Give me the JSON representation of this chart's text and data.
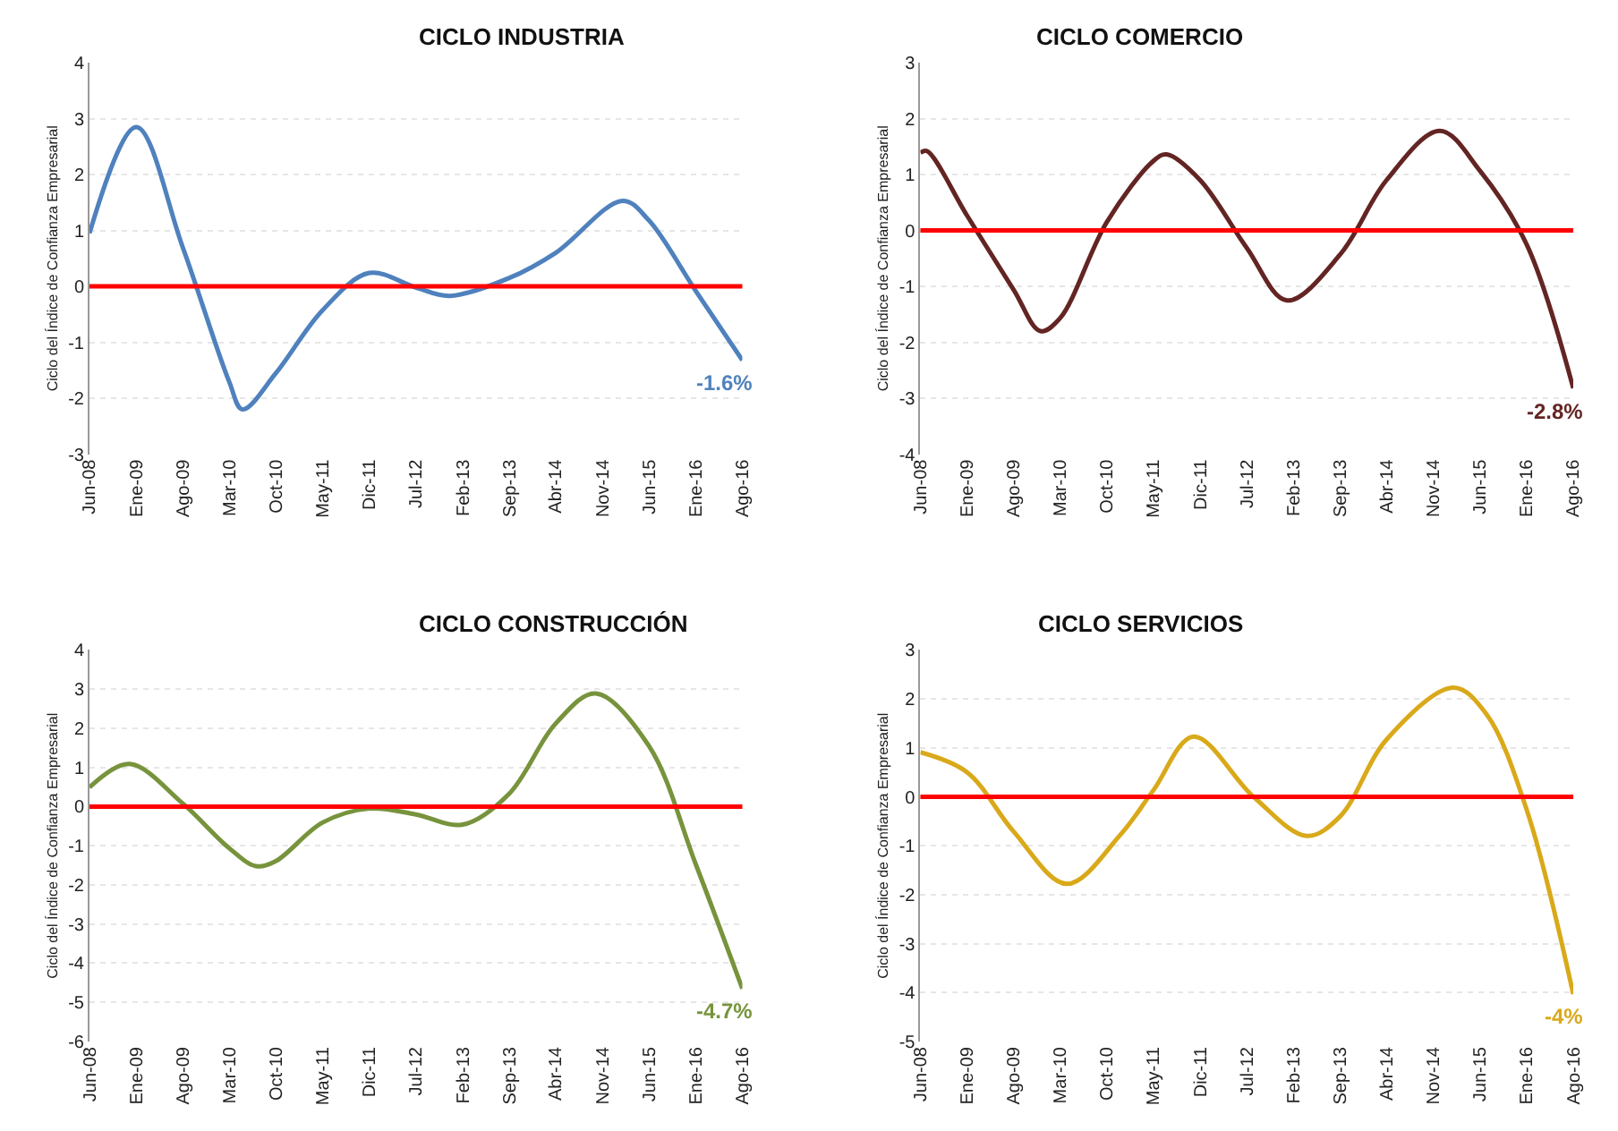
{
  "chart_data": [
    {
      "type": "line",
      "title": "CICLO INDUSTRIA",
      "ylabel": "Ciclo del Índice de Confianza Empresarial",
      "grid": "y",
      "ylim": [
        -3,
        4
      ],
      "yticks": [
        -3,
        -2,
        -1,
        0,
        1,
        2,
        3,
        4
      ],
      "xlim": [
        "2008-06",
        "2016-08"
      ],
      "xticks": [
        {
          "value": "2008-06",
          "label": "Jun-08"
        },
        {
          "value": "2009-01",
          "label": "Ene-09"
        },
        {
          "value": "2009-08",
          "label": "Ago-09"
        },
        {
          "value": "2010-03",
          "label": "Mar-10"
        },
        {
          "value": "2010-10",
          "label": "Oct-10"
        },
        {
          "value": "2011-05",
          "label": "May-11"
        },
        {
          "value": "2011-12",
          "label": "Dic-11"
        },
        {
          "value": "2012-07",
          "label": "Jul-12"
        },
        {
          "value": "2013-02",
          "label": "Feb-13"
        },
        {
          "value": "2013-09",
          "label": "Sep-13"
        },
        {
          "value": "2014-04",
          "label": "Abr-14"
        },
        {
          "value": "2014-11",
          "label": "Nov-14"
        },
        {
          "value": "2015-06",
          "label": "Jun-15"
        },
        {
          "value": "2016-01",
          "label": "Ene-16"
        },
        {
          "value": "2016-08",
          "label": "Ago-16"
        }
      ],
      "series": [
        {
          "color": "#4f81bd",
          "x": [
            "2008-06",
            "2009-01",
            "2009-08",
            "2010-03",
            "2010-05",
            "2010-10",
            "2011-05",
            "2011-12",
            "2012-07",
            "2012-12",
            "2013-09",
            "2014-04",
            "2015-02",
            "2015-06",
            "2016-01",
            "2016-08"
          ],
          "values": [
            0.95,
            2.85,
            0.7,
            -1.7,
            -2.2,
            -1.55,
            -0.43,
            0.24,
            -0.02,
            -0.17,
            0.15,
            0.6,
            1.53,
            1.18,
            -0.08,
            -1.32
          ]
        }
      ],
      "ref_lines": [
        {
          "axis": "y",
          "value": 0,
          "color": "#ff0000"
        }
      ],
      "annotations": [
        {
          "text": "-1.6%",
          "x": "2016-08",
          "y": -1.32
        }
      ]
    },
    {
      "type": "line",
      "title": "CICLO COMERCIO",
      "ylabel": "Ciclo del Índice de Confianza Empresarial",
      "grid": "y",
      "ylim": [
        -4,
        3
      ],
      "yticks": [
        -4,
        -3,
        -2,
        -1,
        0,
        1,
        2,
        3
      ],
      "xlim": [
        "2008-06",
        "2016-08"
      ],
      "xticks": [
        {
          "value": "2008-06",
          "label": "Jun-08"
        },
        {
          "value": "2009-01",
          "label": "Ene-09"
        },
        {
          "value": "2009-08",
          "label": "Ago-09"
        },
        {
          "value": "2010-03",
          "label": "Mar-10"
        },
        {
          "value": "2010-10",
          "label": "Oct-10"
        },
        {
          "value": "2011-05",
          "label": "May-11"
        },
        {
          "value": "2011-12",
          "label": "Dic-11"
        },
        {
          "value": "2012-07",
          "label": "Jul-12"
        },
        {
          "value": "2013-02",
          "label": "Feb-13"
        },
        {
          "value": "2013-09",
          "label": "Sep-13"
        },
        {
          "value": "2014-04",
          "label": "Abr-14"
        },
        {
          "value": "2014-11",
          "label": "Nov-14"
        },
        {
          "value": "2015-06",
          "label": "Jun-15"
        },
        {
          "value": "2016-01",
          "label": "Ene-16"
        },
        {
          "value": "2016-08",
          "label": "Ago-16"
        }
      ],
      "series": [
        {
          "color": "#632523",
          "x": [
            "2008-06",
            "2008-07",
            "2009-01",
            "2009-08",
            "2009-12",
            "2010-03",
            "2010-10",
            "2011-05",
            "2011-07",
            "2011-12",
            "2012-07",
            "2013-01",
            "2013-09",
            "2014-04",
            "2014-12",
            "2015-06",
            "2016-01",
            "2016-08"
          ],
          "values": [
            1.39,
            1.42,
            0.26,
            -1.06,
            -1.8,
            -1.57,
            0.15,
            1.24,
            1.36,
            0.9,
            -0.31,
            -1.25,
            -0.43,
            0.9,
            1.78,
            1.07,
            -0.25,
            -2.82
          ]
        }
      ],
      "ref_lines": [
        {
          "axis": "y",
          "value": 0,
          "color": "#ff0000"
        }
      ],
      "annotations": [
        {
          "text": "-2.8%",
          "x": "2016-08",
          "y": -2.82
        }
      ]
    },
    {
      "type": "line",
      "title": "CICLO CONSTRUCCIÓN",
      "ylabel": "Ciclo del Índice de Confianza Empresarial",
      "grid": "y",
      "ylim": [
        -6,
        4
      ],
      "yticks": [
        -6,
        -5,
        -4,
        -3,
        -2,
        -1,
        0,
        1,
        2,
        3,
        4
      ],
      "xlim": [
        "2008-06",
        "2016-08"
      ],
      "xticks": [
        {
          "value": "2008-06",
          "label": "Jun-08"
        },
        {
          "value": "2009-01",
          "label": "Ene-09"
        },
        {
          "value": "2009-08",
          "label": "Ago-09"
        },
        {
          "value": "2010-03",
          "label": "Mar-10"
        },
        {
          "value": "2010-10",
          "label": "Oct-10"
        },
        {
          "value": "2011-05",
          "label": "May-11"
        },
        {
          "value": "2011-12",
          "label": "Dic-11"
        },
        {
          "value": "2012-07",
          "label": "Jul-12"
        },
        {
          "value": "2013-02",
          "label": "Feb-13"
        },
        {
          "value": "2013-09",
          "label": "Sep-13"
        },
        {
          "value": "2014-04",
          "label": "Abr-14"
        },
        {
          "value": "2014-11",
          "label": "Nov-14"
        },
        {
          "value": "2015-06",
          "label": "Jun-15"
        },
        {
          "value": "2016-01",
          "label": "Ene-16"
        },
        {
          "value": "2016-08",
          "label": "Ago-16"
        }
      ],
      "series": [
        {
          "color": "#77933c",
          "x": [
            "2008-06",
            "2008-12",
            "2009-08",
            "2010-03",
            "2010-07",
            "2010-10",
            "2011-05",
            "2011-12",
            "2012-07",
            "2013-02",
            "2013-09",
            "2014-04",
            "2014-10",
            "2015-06",
            "2016-01",
            "2016-08"
          ],
          "values": [
            0.49,
            1.09,
            0.08,
            -1.06,
            -1.52,
            -1.39,
            -0.41,
            -0.05,
            -0.2,
            -0.46,
            0.33,
            2.12,
            2.89,
            1.55,
            -1.47,
            -4.65
          ]
        }
      ],
      "ref_lines": [
        {
          "axis": "y",
          "value": 0,
          "color": "#ff0000"
        }
      ],
      "annotations": [
        {
          "text": "-4.7%",
          "x": "2016-08",
          "y": -4.65
        }
      ]
    },
    {
      "type": "line",
      "title": "CICLO SERVICIOS",
      "ylabel": "Ciclo del Índice de Confianza Empresarial",
      "grid": "y",
      "ylim": [
        -5,
        3
      ],
      "yticks": [
        -5,
        -4,
        -3,
        -2,
        -1,
        0,
        1,
        2,
        3
      ],
      "xlim": [
        "2008-06",
        "2016-08"
      ],
      "xticks": [
        {
          "value": "2008-06",
          "label": "Jun-08"
        },
        {
          "value": "2009-01",
          "label": "Ene-09"
        },
        {
          "value": "2009-08",
          "label": "Ago-09"
        },
        {
          "value": "2010-03",
          "label": "Mar-10"
        },
        {
          "value": "2010-10",
          "label": "Oct-10"
        },
        {
          "value": "2011-05",
          "label": "May-11"
        },
        {
          "value": "2011-12",
          "label": "Dic-11"
        },
        {
          "value": "2012-07",
          "label": "Jul-12"
        },
        {
          "value": "2013-02",
          "label": "Feb-13"
        },
        {
          "value": "2013-09",
          "label": "Sep-13"
        },
        {
          "value": "2014-04",
          "label": "Abr-14"
        },
        {
          "value": "2014-11",
          "label": "Nov-14"
        },
        {
          "value": "2015-06",
          "label": "Jun-15"
        },
        {
          "value": "2016-01",
          "label": "Ene-16"
        },
        {
          "value": "2016-08",
          "label": "Ago-16"
        }
      ],
      "series": [
        {
          "color": "#d9a91a",
          "x": [
            "2008-06",
            "2009-01",
            "2009-08",
            "2010-04",
            "2010-12",
            "2011-05",
            "2011-11",
            "2012-08",
            "2013-04",
            "2013-09",
            "2014-04",
            "2015-02",
            "2015-07",
            "2016-01",
            "2016-08"
          ],
          "values": [
            0.91,
            0.5,
            -0.71,
            -1.78,
            -0.78,
            0.13,
            1.23,
            0.0,
            -0.8,
            -0.4,
            1.17,
            2.23,
            1.69,
            -0.26,
            -4.03
          ]
        }
      ],
      "ref_lines": [
        {
          "axis": "y",
          "value": 0,
          "color": "#ff0000"
        }
      ],
      "annotations": [
        {
          "text": "-4%",
          "x": "2016-08",
          "y": -4.03
        }
      ]
    }
  ]
}
